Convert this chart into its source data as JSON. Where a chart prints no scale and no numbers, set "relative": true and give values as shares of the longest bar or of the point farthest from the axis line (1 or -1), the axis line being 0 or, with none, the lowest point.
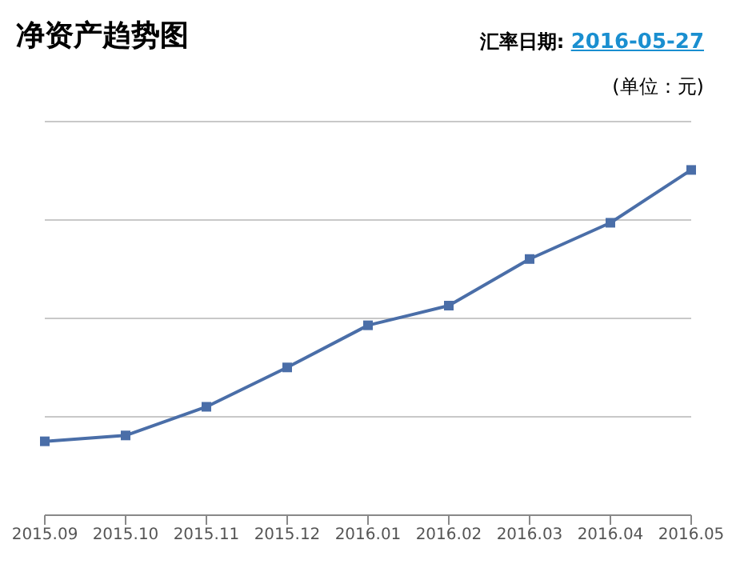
{
  "chart_data": {
    "type": "line",
    "title": "净资产趋势图",
    "annotations": [
      "汇率日期:",
      "2016-05-27",
      "(单位：元)"
    ],
    "categories": [
      "2015.09",
      "2015.10",
      "2015.11",
      "2015.12",
      "2016.01",
      "2016.02",
      "2016.03",
      "2016.04",
      "2016.05"
    ],
    "series": [
      {
        "color": "#4a6ea8",
        "values": [
          0.214,
          0.231,
          0.314,
          0.428,
          0.55,
          0.607,
          0.742,
          0.847,
          1
        ]
      }
    ],
    "relative": true,
    "grid": "y",
    "marker": "square",
    "line_style": "solid"
  }
}
